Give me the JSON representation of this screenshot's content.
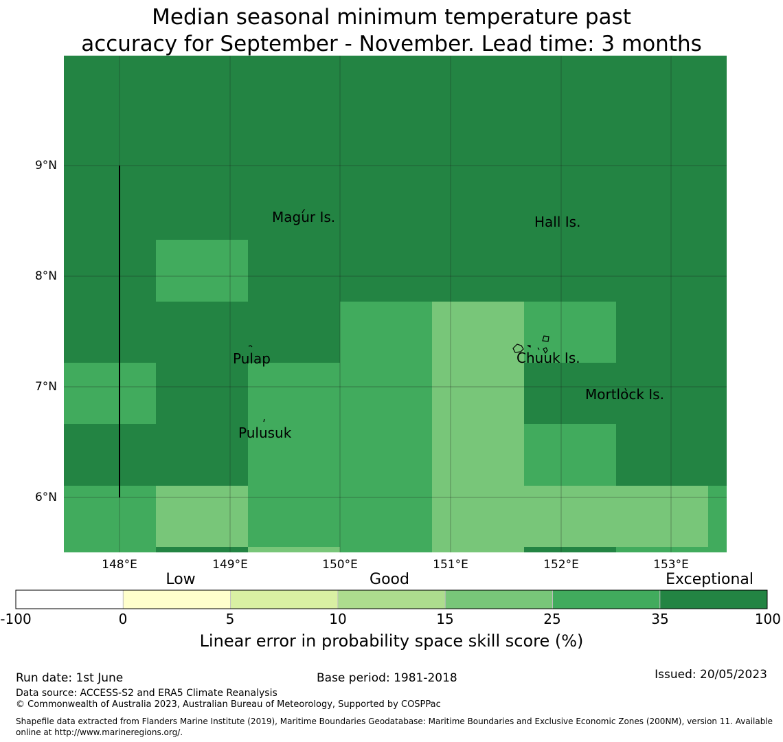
{
  "title_line1": "Median seasonal minimum temperature past",
  "title_line2": "accuracy for September - November. Lead time: 3 months",
  "map": {
    "latitude_labels": [
      "9°N",
      "8°N",
      "7°N",
      "6°N"
    ],
    "longitude_labels": [
      "148°E",
      "149°E",
      "150°E",
      "151°E",
      "152°E",
      "153°E"
    ],
    "places": [
      "Magur Is.",
      "Hall Is.",
      "Pulap",
      "Chuuk Is.",
      "Mortlock Is.",
      "Pulusuk"
    ],
    "colors": {
      "exceptional": "#238443",
      "good_high": "#41ab5d",
      "good_mid": "#78c679",
      "good_low": "#addd8e",
      "low_high": "#d9f0a3",
      "low_low": "#ffffcc",
      "none": "#ffffff"
    }
  },
  "colorbar": {
    "categories": [
      "Low",
      "Good",
      "Exceptional"
    ],
    "tick_labels": [
      "-100",
      "0",
      "5",
      "10",
      "15",
      "25",
      "35",
      "100"
    ],
    "colors": [
      "#ffffff",
      "#ffffcc",
      "#d9f0a3",
      "#addd8e",
      "#78c679",
      "#41ab5d",
      "#238443"
    ],
    "label": "Linear error in probability space skill score (%)"
  },
  "footer": {
    "run_date": "Run date: 1st June",
    "base_period": "Base period: 1981-2018",
    "issued": "Issued: 20/05/2023",
    "data_source": "Data source: ACCESS-S2 and ERA5 Climate Reanalysis",
    "copyright": "© Commonwealth of Australia 2023, Australian Bureau of Meteorology, Supported by COSPPac",
    "shapefile": "Shapefile data extracted from Flanders Marine Institute (2019), Maritime Boundaries Geodatabase: Maritime Boundaries and Exclusive Economic Zones (200NM), version 11. Available online at http://www.marineregions.org/."
  }
}
